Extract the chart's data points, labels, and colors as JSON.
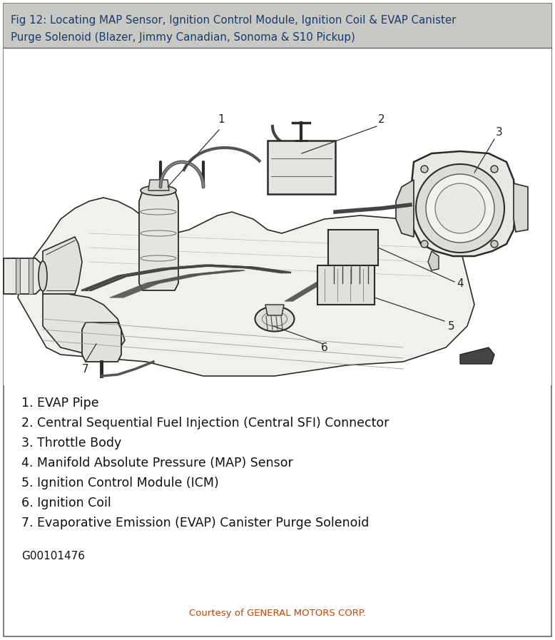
{
  "title_line1": "Fig 12: Locating MAP Sensor, Ignition Control Module, Ignition Coil & EVAP Canister",
  "title_line2": "Purge Solenoid (Blazer, Jimmy Canadian, Sonoma & S10 Pickup)",
  "title_bg": "#c8c8c4",
  "title_text_color": "#1a3a6b",
  "body_bg": "#ffffff",
  "border_color": "#666666",
  "diagram_bg": "#ffffff",
  "legend_items": [
    "1. EVAP Pipe",
    "2. Central Sequential Fuel Injection (Central SFI) Connector",
    "3. Throttle Body",
    "4. Manifold Absolute Pressure (MAP) Sensor",
    "5. Ignition Control Module (ICM)",
    "6. Ignition Coil",
    "7. Evaporative Emission (EVAP) Canister Purge Solenoid"
  ],
  "ref_code": "G00101476",
  "courtesy_text": "Courtesy of GENERAL MOTORS CORP.",
  "courtesy_color": "#cc4400",
  "title_fontsize": 10.8,
  "legend_fontsize": 12.5,
  "ref_fontsize": 11,
  "courtesy_fontsize": 9.5,
  "fig_width": 7.78,
  "fig_height": 8.97
}
